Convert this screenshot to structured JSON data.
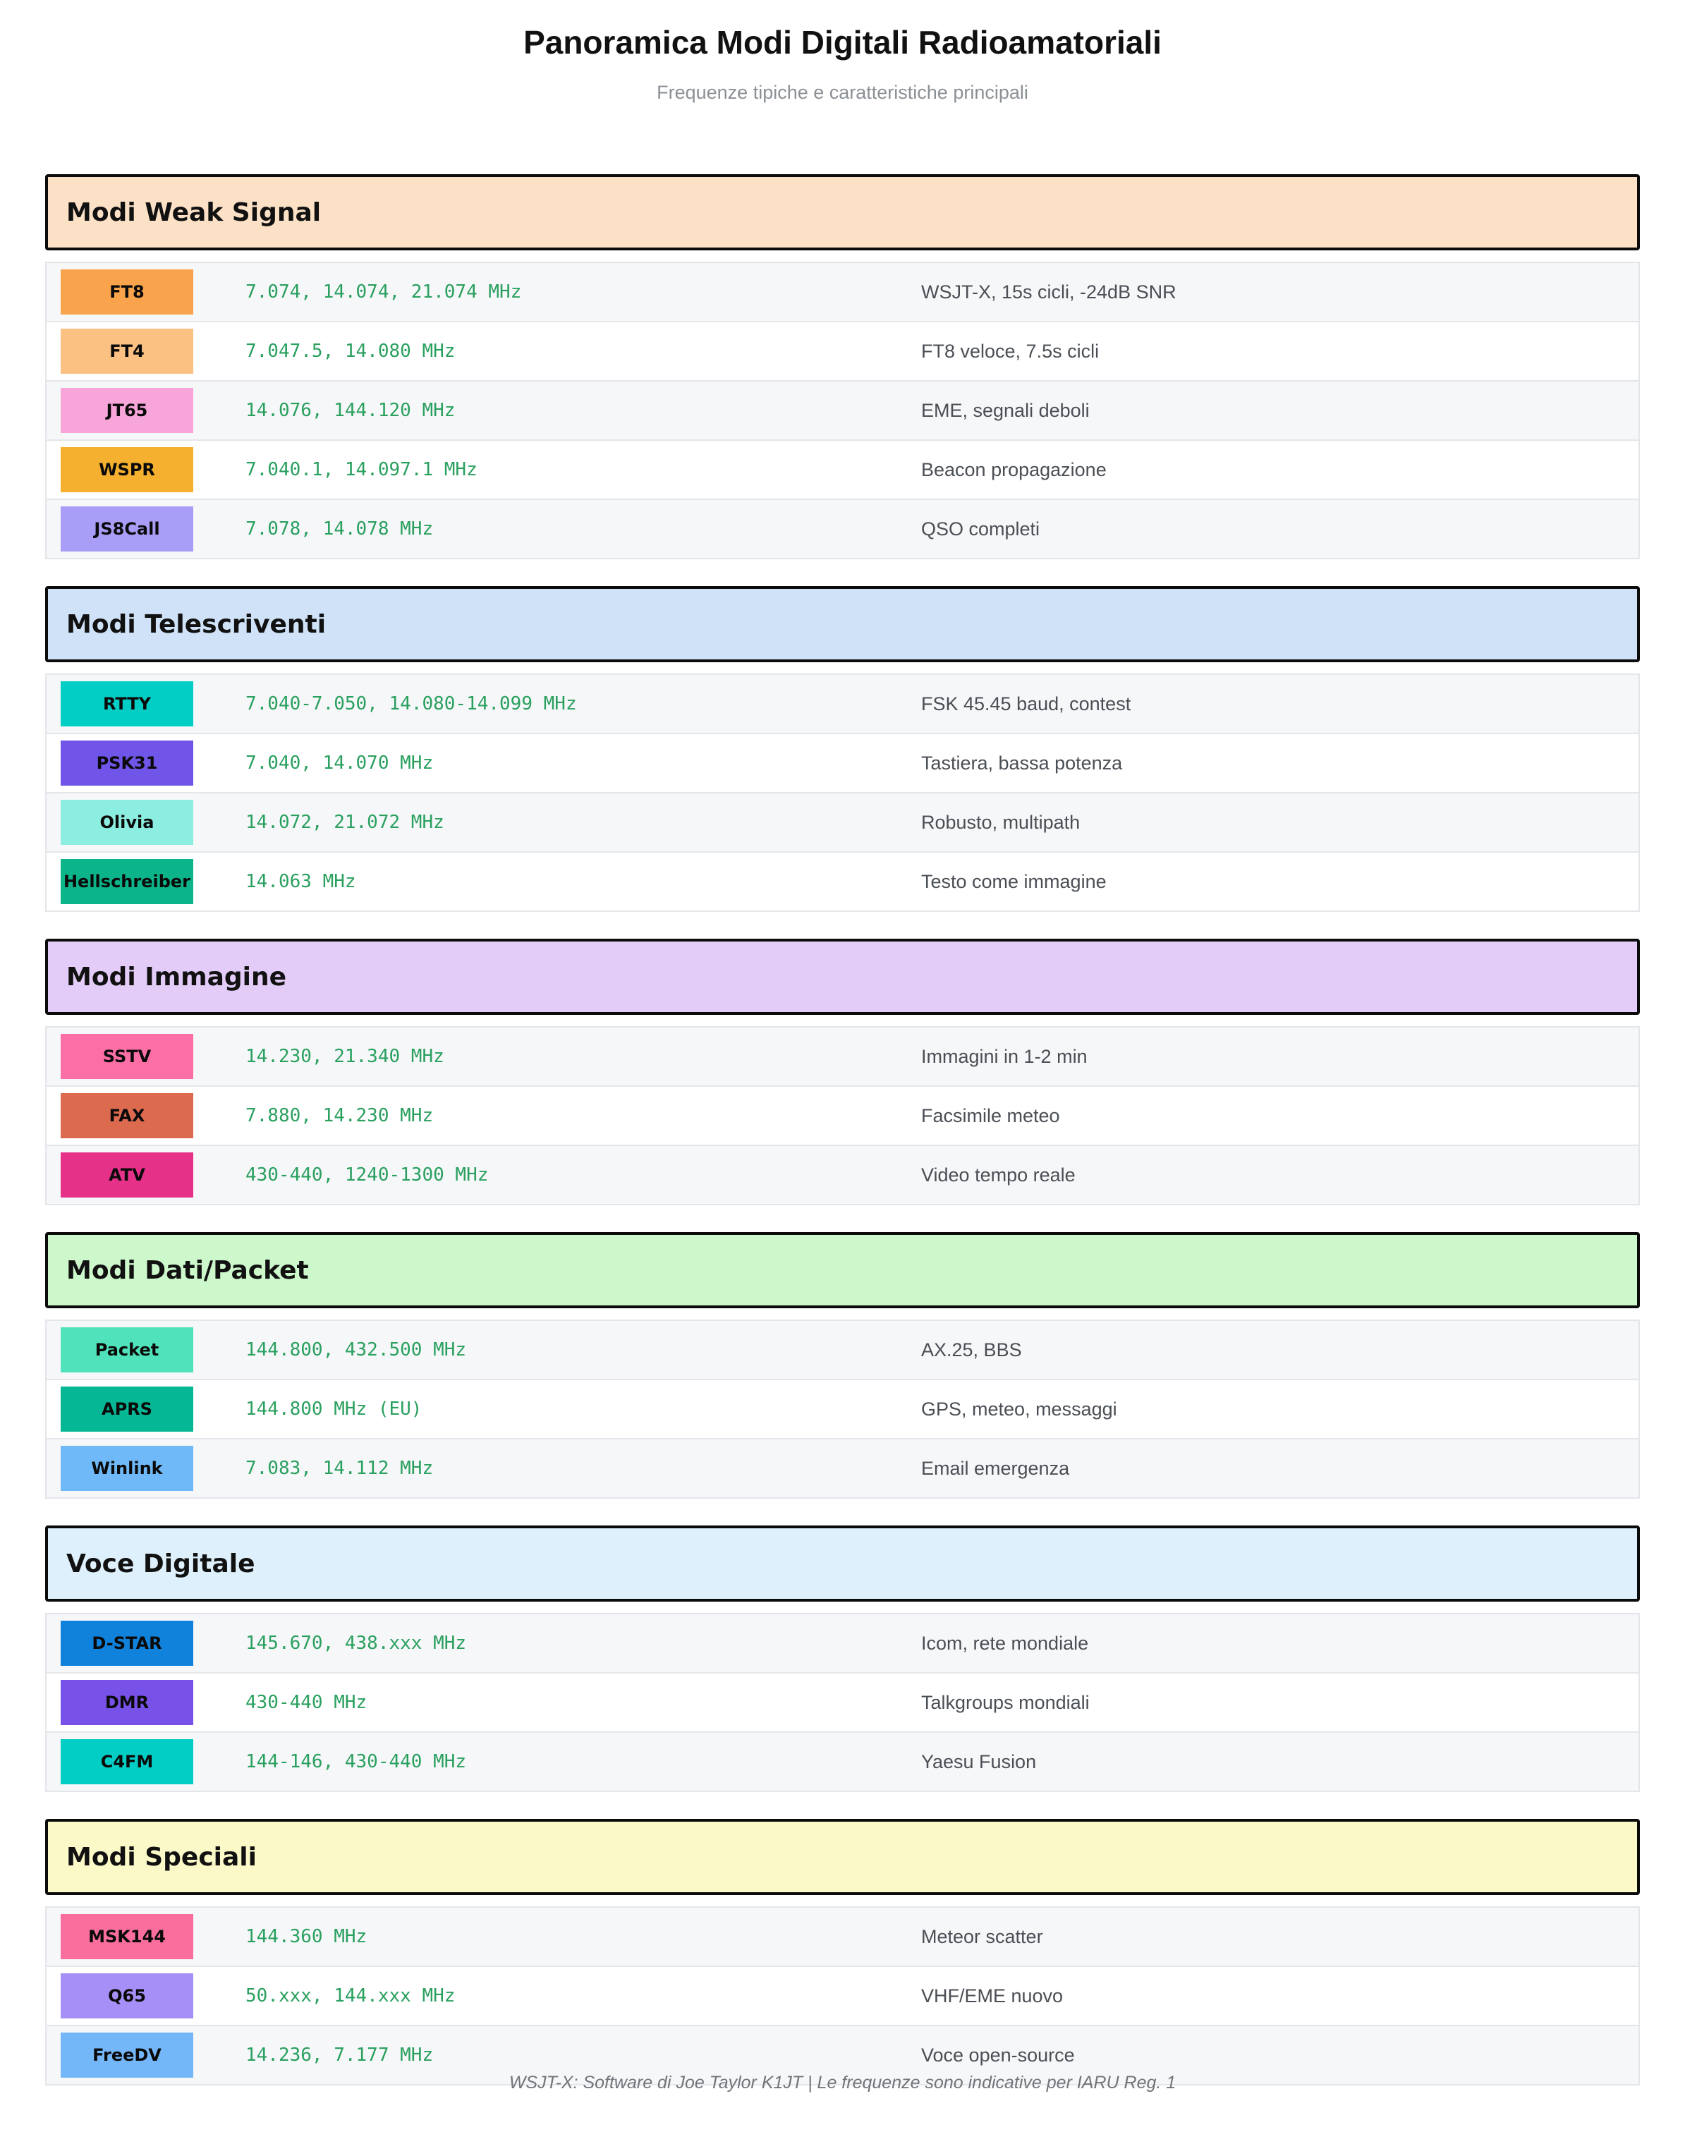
{
  "page": {
    "title": "Panoramica Modi Digitali Radioamatoriali",
    "subtitle": "Frequenze tipiche e caratteristiche principali",
    "footer": "WSJT-X: Software di Joe Taylor K1JT | Le frequenze sono indicative per IARU Reg. 1"
  },
  "colors": {
    "frequency_text": "#2aa05f",
    "description_text": "#4a4f55",
    "row_alt_bg": "#f6f7f9",
    "row_border": "#e4e6ea",
    "section_border": "#0b0b0b"
  },
  "sections": [
    {
      "title": "Modi Weak Signal",
      "header_bg": "#fce1c6",
      "rows": [
        {
          "mode": "FT8",
          "badge_color": "#f9a34c",
          "freq": "7.074, 14.074, 21.074 MHz",
          "desc": "WSJT-X, 15s cicli, -24dB SNR"
        },
        {
          "mode": "FT4",
          "badge_color": "#fbc183",
          "freq": "7.047.5, 14.080 MHz",
          "desc": "FT8 veloce, 7.5s cicli"
        },
        {
          "mode": "JT65",
          "badge_color": "#f8a6da",
          "freq": "14.076, 144.120 MHz",
          "desc": "EME, segnali deboli"
        },
        {
          "mode": "WSPR",
          "badge_color": "#f4b02e",
          "freq": "7.040.1, 14.097.1 MHz",
          "desc": "Beacon propagazione"
        },
        {
          "mode": "JS8Call",
          "badge_color": "#a89ef7",
          "freq": "7.078, 14.078 MHz",
          "desc": "QSO completi"
        }
      ]
    },
    {
      "title": "Modi Telescriventi",
      "header_bg": "#cfe2f8",
      "rows": [
        {
          "mode": "RTTY",
          "badge_color": "#03cec5",
          "freq": "7.040-7.050, 14.080-14.099 MHz",
          "desc": "FSK 45.45 baud, contest"
        },
        {
          "mode": "PSK31",
          "badge_color": "#7155e8",
          "freq": "7.040, 14.070 MHz",
          "desc": "Tastiera, bassa potenza"
        },
        {
          "mode": "Olivia",
          "badge_color": "#8beee0",
          "freq": "14.072, 21.072 MHz",
          "desc": "Robusto, multipath"
        },
        {
          "mode": "Hellschreiber",
          "badge_color": "#0cb489",
          "freq": "14.063 MHz",
          "desc": "Testo come immagine"
        }
      ]
    },
    {
      "title": "Modi Immagine",
      "header_bg": "#e3ccf8",
      "rows": [
        {
          "mode": "SSTV",
          "badge_color": "#fb6ea6",
          "freq": "14.230, 21.340 MHz",
          "desc": "Immagini in 1-2 min"
        },
        {
          "mode": "FAX",
          "badge_color": "#dc6a4f",
          "freq": "7.880, 14.230 MHz",
          "desc": "Facsimile meteo"
        },
        {
          "mode": "ATV",
          "badge_color": "#e63189",
          "freq": "430-440, 1240-1300 MHz",
          "desc": "Video tempo reale"
        }
      ]
    },
    {
      "title": "Modi Dati/Packet",
      "header_bg": "#cdf8cb",
      "rows": [
        {
          "mode": "Packet",
          "badge_color": "#50e2ba",
          "freq": "144.800, 432.500 MHz",
          "desc": "AX.25, BBS"
        },
        {
          "mode": "APRS",
          "badge_color": "#06b795",
          "freq": "144.800 MHz (EU)",
          "desc": "GPS, meteo, messaggi"
        },
        {
          "mode": "Winlink",
          "badge_color": "#6fb9f8",
          "freq": "7.083, 14.112 MHz",
          "desc": "Email emergenza"
        }
      ]
    },
    {
      "title": "Voce Digitale",
      "header_bg": "#def0fb",
      "rows": [
        {
          "mode": "D-STAR",
          "badge_color": "#1182dc",
          "freq": "145.670, 438.xxx MHz",
          "desc": "Icom, rete mondiale"
        },
        {
          "mode": "DMR",
          "badge_color": "#7852e8",
          "freq": "430-440 MHz",
          "desc": "Talkgroups mondiali"
        },
        {
          "mode": "C4FM",
          "badge_color": "#03cec5",
          "freq": "144-146, 430-440 MHz",
          "desc": "Yaesu Fusion"
        }
      ]
    },
    {
      "title": "Modi Speciali",
      "header_bg": "#fbf9c8",
      "rows": [
        {
          "mode": "MSK144",
          "badge_color": "#fa6e9e",
          "freq": "144.360 MHz",
          "desc": "Meteor scatter"
        },
        {
          "mode": "Q65",
          "badge_color": "#a78ff8",
          "freq": "50.xxx, 144.xxx MHz",
          "desc": "VHF/EME nuovo"
        },
        {
          "mode": "FreeDV",
          "badge_color": "#74b7f8",
          "freq": "14.236, 7.177 MHz",
          "desc": "Voce open-source"
        }
      ]
    }
  ]
}
